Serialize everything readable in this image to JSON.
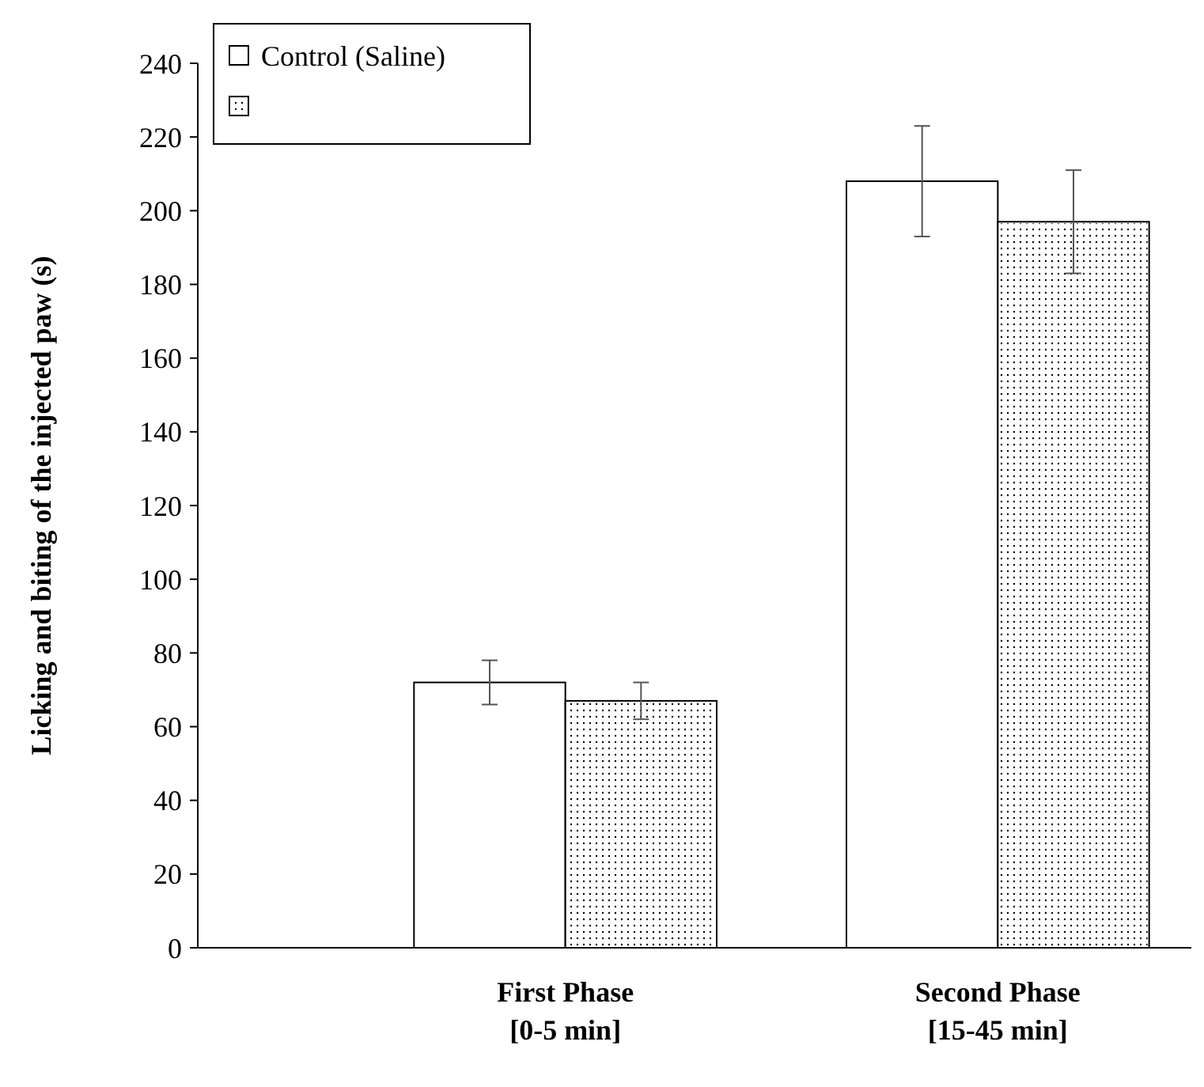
{
  "chart_data": {
    "type": "bar",
    "ylabel": "Licking and biting of the injected paw (s)",
    "categories": [
      "First Phase\n[0-5 min]",
      "Second Phase\n[15-45 min]"
    ],
    "series": [
      {
        "name": "Control (Saline)",
        "color": "#ffffff",
        "values": [
          72,
          208
        ],
        "errors": [
          6,
          15
        ]
      },
      {
        "color": "#ffffff",
        "values": [
          67,
          197
        ],
        "errors": [
          5,
          14
        ]
      }
    ],
    "ylim": [
      0,
      240
    ],
    "yticks": [
      0,
      20,
      40,
      60,
      80,
      100,
      120,
      140,
      160,
      180,
      200,
      220,
      240
    ],
    "grid": false,
    "legend": "top left"
  }
}
